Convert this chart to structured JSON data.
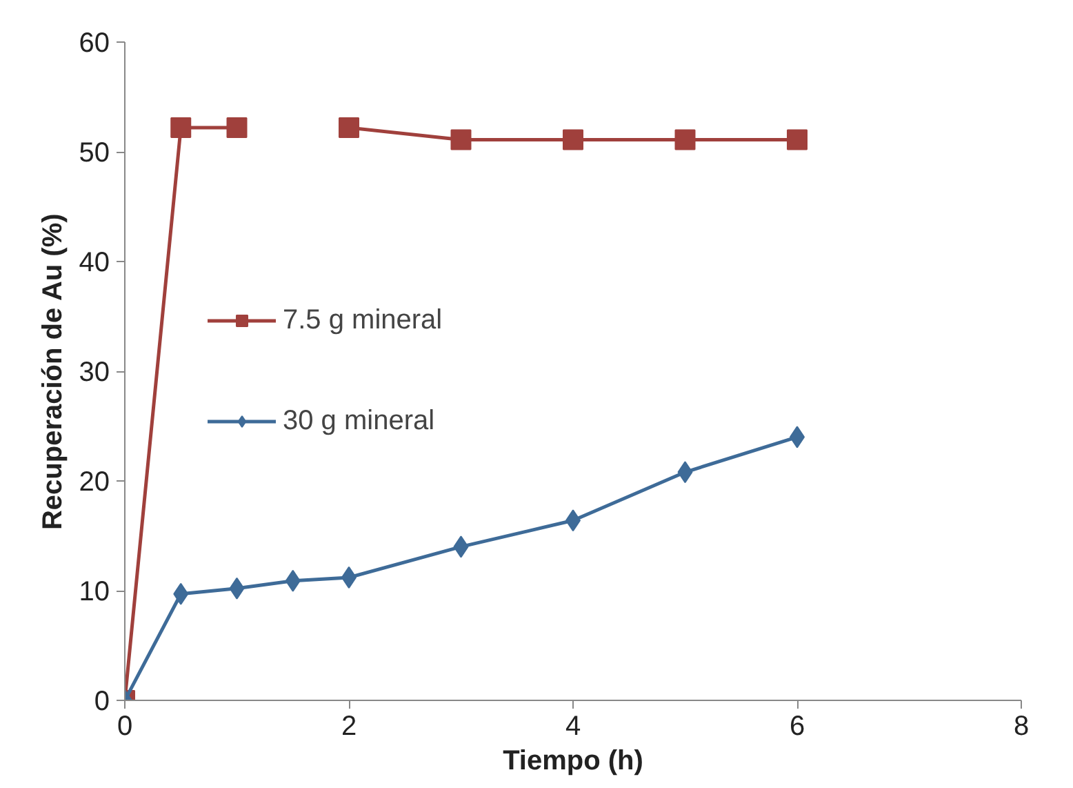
{
  "chart_data": {
    "type": "line",
    "xlabel": "Tiempo (h)",
    "ylabel": "Recuperación de Au (%)",
    "x": [
      0,
      0.5,
      1,
      1.5,
      2,
      3,
      4,
      5,
      6
    ],
    "series": [
      {
        "name": "7.5 g mineral",
        "color": "#a0403c",
        "marker": "square",
        "values": [
          0,
          52.2,
          52.2,
          null,
          52.2,
          51.1,
          51.1,
          51.1,
          51.1
        ]
      },
      {
        "name": "30 g mineral",
        "color": "#3e6b98",
        "marker": "diamond",
        "values": [
          0,
          9.7,
          10.2,
          10.9,
          11.2,
          14.0,
          16.4,
          20.8,
          24.0
        ]
      }
    ],
    "xlim": [
      0,
      8
    ],
    "xticks": [
      0,
      2,
      4,
      6,
      8
    ],
    "ylim": [
      0,
      60
    ],
    "yticks": [
      0,
      10,
      20,
      30,
      40,
      50,
      60
    ],
    "grid": false,
    "legend": "left",
    "line_style": "solid"
  }
}
